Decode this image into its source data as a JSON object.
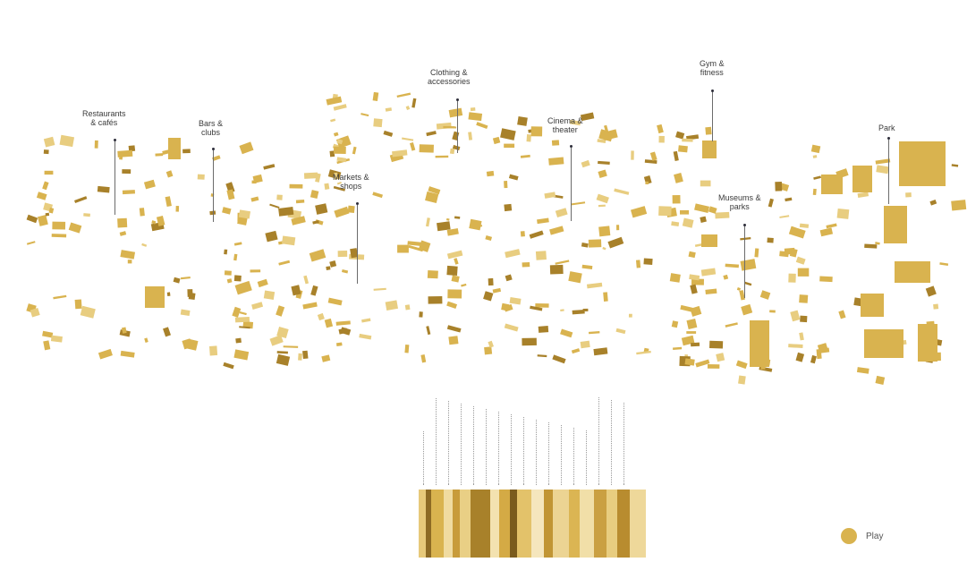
{
  "categories": [
    {
      "id": "restaurants",
      "line1": "Restaurants",
      "line2": "& cafés"
    },
    {
      "id": "bars",
      "line1": "Bars &",
      "line2": "clubs"
    },
    {
      "id": "markets",
      "line1": "Markets &",
      "line2": "shops"
    },
    {
      "id": "clothing",
      "line1": "Clothing &",
      "line2": "accessories"
    },
    {
      "id": "cinema",
      "line1": "Cinema &",
      "line2": "theater"
    },
    {
      "id": "gym",
      "line1": "Gym &",
      "line2": "fitness"
    },
    {
      "id": "museums",
      "line1": "Museums &",
      "line2": "parks"
    },
    {
      "id": "park",
      "line1": "Park",
      "line2": ""
    }
  ],
  "legend": {
    "label": "Play",
    "color": "#d9b34f"
  },
  "colors": {
    "gold": "#d9b34f",
    "gold_dark": "#a8812a",
    "gold_light": "#e8cd80",
    "leader": "#6b6b6b"
  }
}
